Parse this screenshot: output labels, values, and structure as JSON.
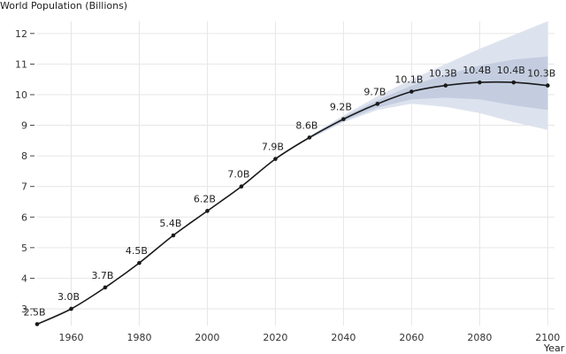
{
  "chart_data": {
    "type": "line",
    "ylabel": "World Population (Billions)",
    "xlabel": "Year",
    "xlim": [
      1950,
      2102
    ],
    "ylim": [
      2.45,
      12.4
    ],
    "xticks": [
      1960,
      1980,
      2000,
      2020,
      2040,
      2060,
      2080,
      2100
    ],
    "yticks": [
      3,
      4,
      5,
      6,
      7,
      8,
      9,
      10,
      11,
      12
    ],
    "grid": true,
    "series": [
      {
        "x": [
          1950,
          1960,
          1970,
          1980,
          1990,
          2000,
          2010,
          2020,
          2030,
          2040,
          2050,
          2060,
          2070,
          2080,
          2090,
          2100
        ],
        "values": [
          2.5,
          3.0,
          3.7,
          4.5,
          5.4,
          6.2,
          7.0,
          7.9,
          8.6,
          9.2,
          9.7,
          10.1,
          10.3,
          10.4,
          10.4,
          10.3
        ],
        "labels": [
          "2.5B",
          "3.0B",
          "3.7B",
          "4.5B",
          "5.4B",
          "6.2B",
          "7.0B",
          "7.9B",
          "8.6B",
          "9.2B",
          "9.7B",
          "10.1B",
          "10.3B",
          "10.4B",
          "10.4B",
          "10.3B"
        ]
      }
    ],
    "uncertainty": {
      "x": [
        2030,
        2040,
        2050,
        2060,
        2070,
        2080,
        2090,
        2100
      ],
      "outer_lower": [
        8.55,
        9.1,
        9.5,
        9.7,
        9.6,
        9.4,
        9.1,
        8.85
      ],
      "outer_upper": [
        8.65,
        9.32,
        9.95,
        10.5,
        11.0,
        11.5,
        11.95,
        12.4
      ],
      "inner_lower": [
        8.57,
        9.14,
        9.58,
        9.85,
        9.9,
        9.85,
        9.65,
        9.5
      ],
      "inner_upper": [
        8.63,
        9.27,
        9.82,
        10.3,
        10.65,
        10.95,
        11.15,
        11.25
      ]
    },
    "colors": {
      "line": "#1a1a1a",
      "outer_band": "#dde3ee",
      "inner_band": "#c4cde0",
      "grid": "#e6e6e6"
    }
  }
}
